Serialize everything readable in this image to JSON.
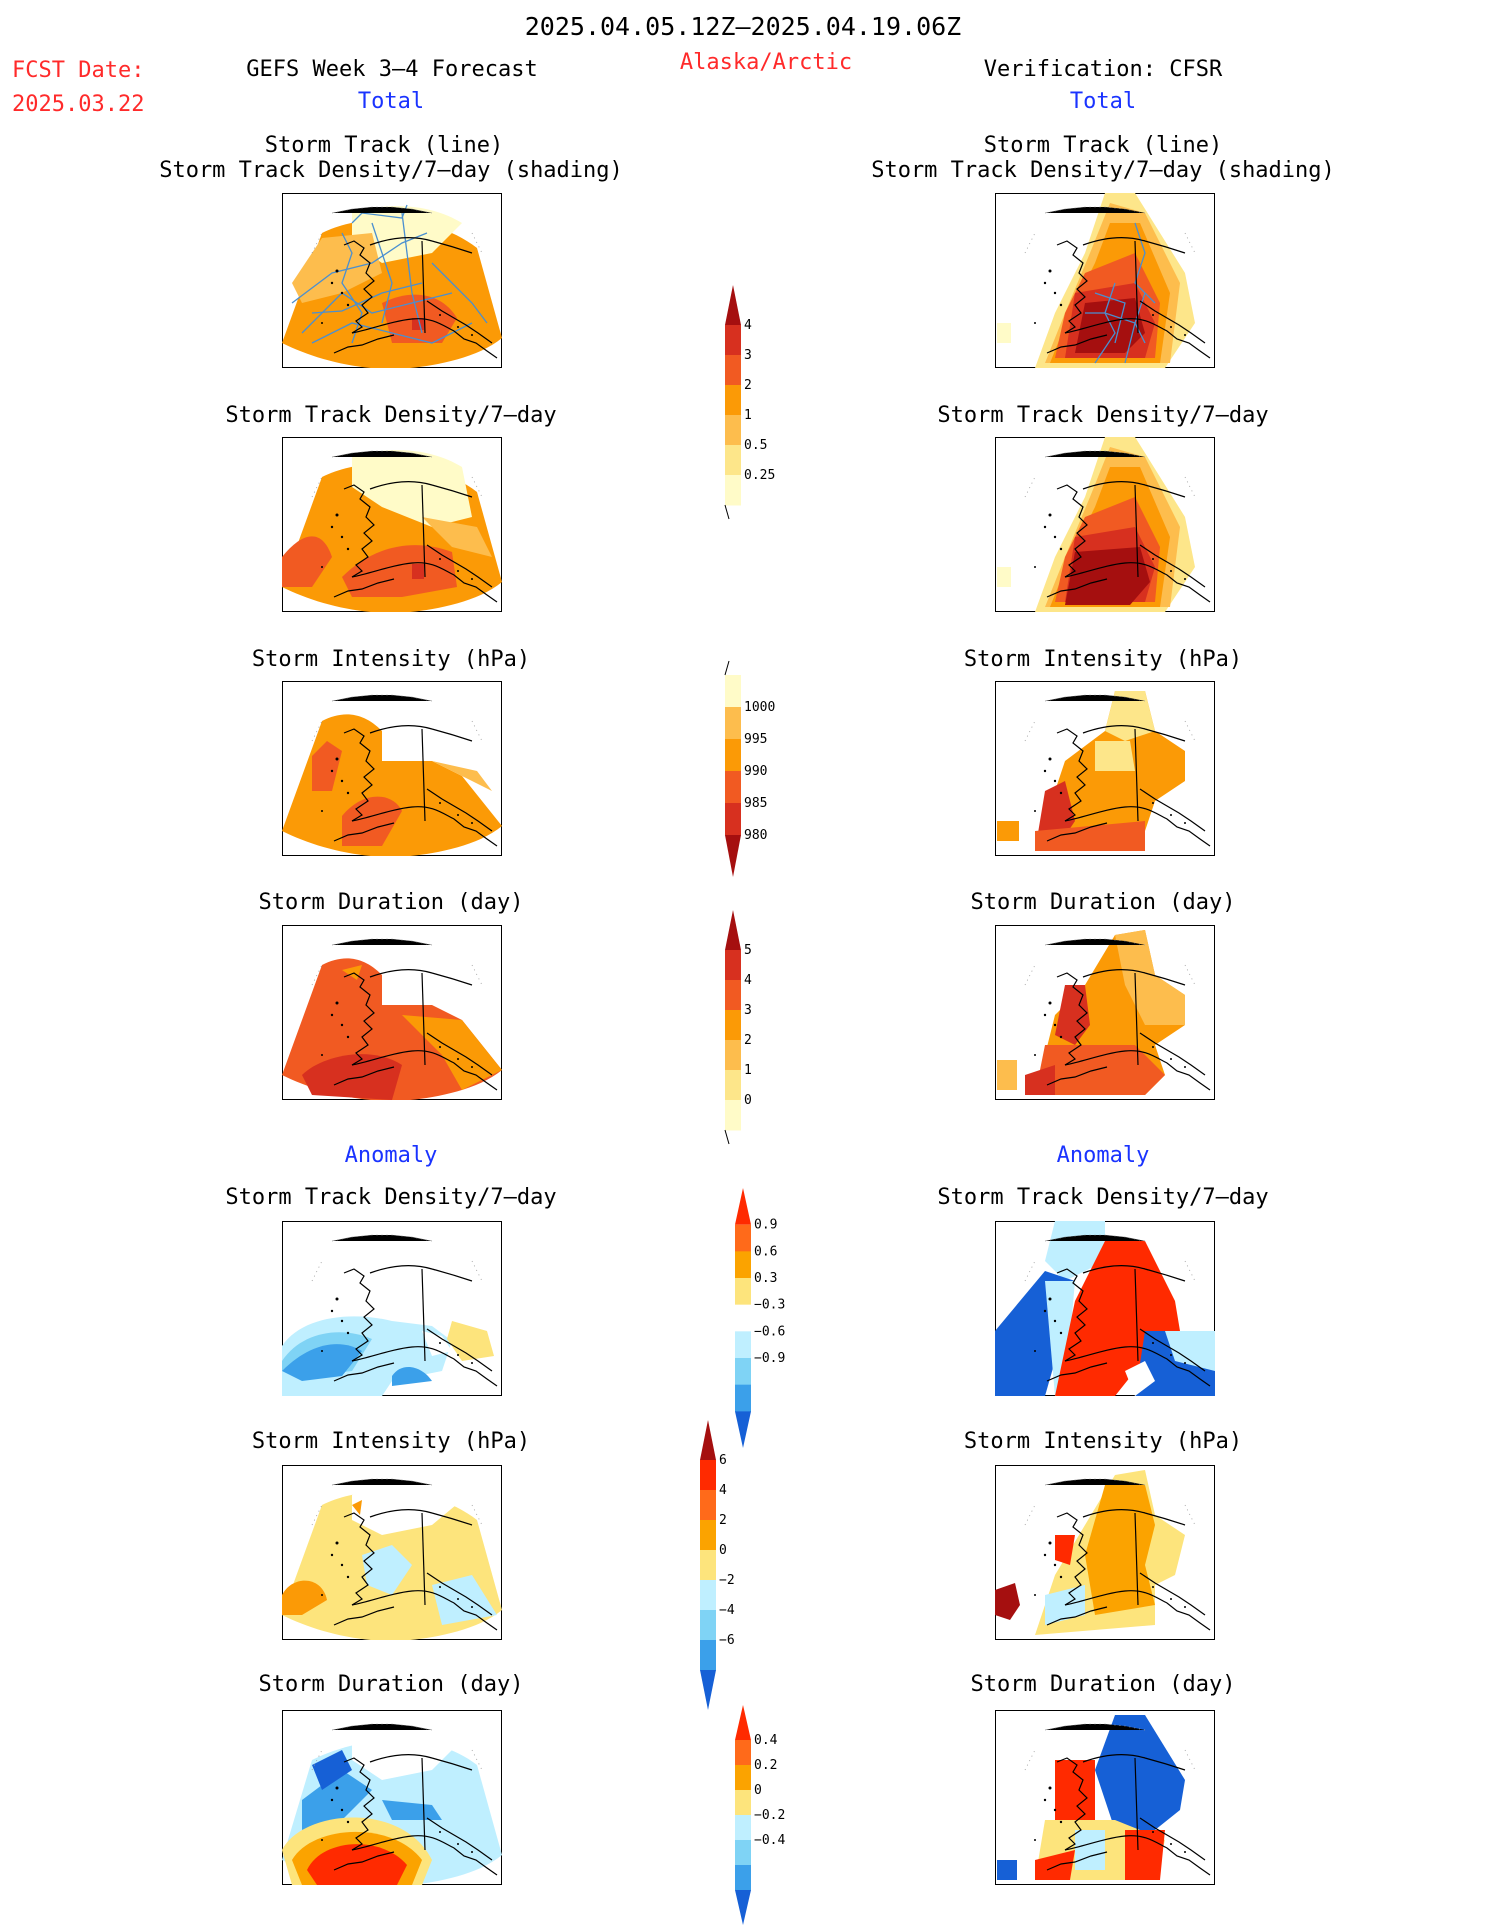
{
  "header": {
    "period": "2025.04.05.12Z–2025.04.19.06Z",
    "fcst_label": "FCST Date:",
    "fcst_date": "2025.03.22",
    "left_model": "GEFS Week 3–4 Forecast",
    "region": "Alaska/Arctic",
    "right_model": "Verification: CFSR",
    "left_section": "Total",
    "right_section": "Total"
  },
  "sections": {
    "anomaly_left": "Anomaly",
    "anomaly_right": "Anomaly"
  },
  "titles": {
    "track_line": "Storm Track (line)",
    "track_shading": "Storm Track Density/7–day (shading)",
    "density": "Storm Track Density/7–day",
    "intensity": "Storm Intensity (hPa)",
    "duration": "Storm Duration (day)"
  },
  "colorbars": {
    "density_total": {
      "labels": [
        "4",
        "3",
        "2",
        "1",
        "0.5",
        "0.25"
      ],
      "colors": [
        "#a50f0f",
        "#d7301f",
        "#f15a22",
        "#fb9a06",
        "#fdbd4d",
        "#fde68a",
        "#fffbc8"
      ]
    },
    "intensity_total": {
      "labels": [
        "1000",
        "995",
        "990",
        "985",
        "980"
      ],
      "colors": [
        "#fffbc8",
        "#fdbd4d",
        "#fb9a06",
        "#f15a22",
        "#d7301f",
        "#a50f0f"
      ]
    },
    "duration_total": {
      "labels": [
        "5",
        "4",
        "3",
        "2",
        "1",
        "0"
      ],
      "colors": [
        "#a50f0f",
        "#d7301f",
        "#f15a22",
        "#fb9a06",
        "#fdbd4d",
        "#fde68a",
        "#fffbc8"
      ]
    },
    "density_anom": {
      "labels": [
        "0.9",
        "0.6",
        "0.3",
        "−0.3",
        "−0.6",
        "−0.9"
      ],
      "colors": [
        "#ff2a00",
        "#ff6a1a",
        "#fba300",
        "#fde47c",
        "#ffffff",
        "#bfefff",
        "#7fd3f5",
        "#3ba0ea",
        "#1660d6"
      ]
    },
    "intensity_anom": {
      "labels": [
        "6",
        "4",
        "2",
        "0",
        "−2",
        "−4",
        "−6"
      ],
      "colors": [
        "#a50f0f",
        "#ff2a00",
        "#ff6a1a",
        "#fba300",
        "#fde47c",
        "#bfefff",
        "#7fd3f5",
        "#3ba0ea",
        "#1660d6"
      ]
    },
    "duration_anom": {
      "labels": [
        "0.4",
        "0.2",
        "0",
        "−0.2",
        "−0.4"
      ],
      "colors": [
        "#ff2a00",
        "#ff6a1a",
        "#fba300",
        "#fde47c",
        "#bfefff",
        "#7fd3f5",
        "#3ba0ea",
        "#1660d6"
      ]
    }
  }
}
